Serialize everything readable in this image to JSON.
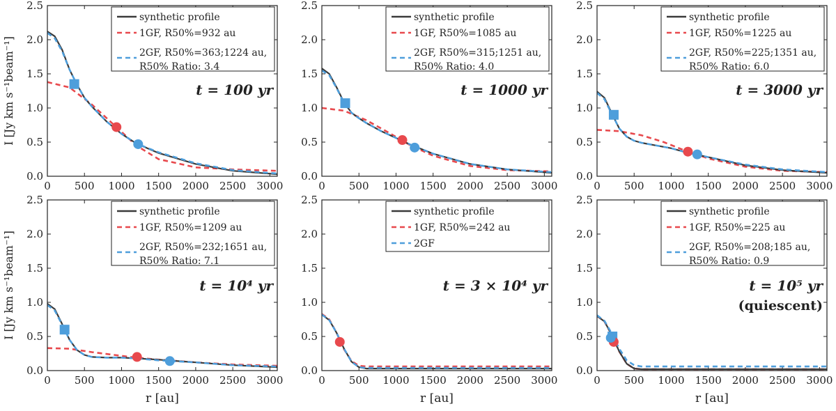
{
  "figure": {
    "ylabel": "I [Jy km s⁻¹beam⁻¹]",
    "xlabel": "r [au]"
  },
  "colors": {
    "synthetic": "#3a3a3a",
    "one_gf": "#e8494d",
    "two_gf": "#4e9edb"
  },
  "chart_data": [
    {
      "type": "line",
      "panel": "100 yr",
      "time_label": "t = 100 yr",
      "time_label_2": "",
      "xlim": [
        0,
        3100
      ],
      "ylim": [
        0,
        2.5
      ],
      "xticks": [
        "0",
        "500",
        "1000",
        "1500",
        "2000",
        "2500",
        "3000"
      ],
      "yticks": [
        "0.0",
        "0.5",
        "1.0",
        "1.5",
        "2.0",
        "2.5"
      ],
      "legend": {
        "synthetic": "synthetic profile",
        "one_gf": "1GF, R50%=932 au",
        "two_gf_line1": "2GF, R50%=363;1224 au,",
        "two_gf_line2": "R50% Ratio: 3.4"
      },
      "series": [
        {
          "name": "synthetic profile",
          "x": [
            0,
            100,
            200,
            300,
            400,
            500,
            600,
            800,
            1000,
            1200,
            1500,
            2000,
            2500,
            3100
          ],
          "values": [
            2.12,
            2.05,
            1.85,
            1.56,
            1.34,
            1.15,
            1.02,
            0.8,
            0.62,
            0.48,
            0.34,
            0.18,
            0.08,
            0.03
          ]
        },
        {
          "name": "1GF",
          "x": [
            0,
            300,
            600,
            900,
            1200,
            1500,
            2000,
            2500,
            3100
          ],
          "values": [
            1.38,
            1.3,
            1.05,
            0.75,
            0.45,
            0.25,
            0.13,
            0.1,
            0.08
          ]
        },
        {
          "name": "2GF",
          "x": [
            0,
            100,
            200,
            300,
            400,
            500,
            600,
            800,
            1000,
            1200,
            1500,
            2000,
            2500,
            3100
          ],
          "values": [
            2.1,
            2.02,
            1.83,
            1.56,
            1.34,
            1.15,
            1.02,
            0.8,
            0.62,
            0.48,
            0.35,
            0.19,
            0.09,
            0.04
          ]
        }
      ],
      "markers": [
        {
          "series": "1GF",
          "shape": "circle",
          "x": 932,
          "y": 0.72
        },
        {
          "series": "2GF",
          "shape": "square",
          "x": 363,
          "y": 1.35
        },
        {
          "series": "2GF",
          "shape": "circle",
          "x": 1224,
          "y": 0.47
        }
      ]
    },
    {
      "type": "line",
      "panel": "1000 yr",
      "time_label": "t = 1000 yr",
      "time_label_2": "",
      "xlim": [
        0,
        3100
      ],
      "ylim": [
        0,
        2.5
      ],
      "xticks": [
        "0",
        "500",
        "1000",
        "1500",
        "2000",
        "2500",
        "3000"
      ],
      "yticks": [
        "0.0",
        "0.5",
        "1.0",
        "1.5",
        "2.0",
        "2.5"
      ],
      "legend": {
        "synthetic": "synthetic profile",
        "one_gf": "1GF, R50%=1085 au",
        "two_gf_line1": "2GF, R50%=315;1251 au,",
        "two_gf_line2": "R50% Ratio: 4.0"
      },
      "series": [
        {
          "name": "synthetic profile",
          "x": [
            0,
            100,
            200,
            300,
            400,
            500,
            600,
            800,
            1000,
            1200,
            1500,
            2000,
            2500,
            3100
          ],
          "values": [
            1.58,
            1.5,
            1.3,
            1.08,
            0.93,
            0.85,
            0.78,
            0.66,
            0.56,
            0.46,
            0.33,
            0.18,
            0.1,
            0.05
          ]
        },
        {
          "name": "1GF",
          "x": [
            0,
            300,
            600,
            900,
            1200,
            1500,
            2000,
            2500,
            3100
          ],
          "values": [
            1.0,
            0.96,
            0.82,
            0.64,
            0.45,
            0.3,
            0.15,
            0.09,
            0.07
          ]
        },
        {
          "name": "2GF",
          "x": [
            0,
            100,
            200,
            300,
            400,
            500,
            600,
            800,
            1000,
            1200,
            1500,
            2000,
            2500,
            3100
          ],
          "values": [
            1.55,
            1.48,
            1.29,
            1.07,
            0.93,
            0.85,
            0.78,
            0.66,
            0.56,
            0.46,
            0.33,
            0.18,
            0.1,
            0.06
          ]
        }
      ],
      "markers": [
        {
          "series": "1GF",
          "shape": "circle",
          "x": 1085,
          "y": 0.53
        },
        {
          "series": "2GF",
          "shape": "square",
          "x": 315,
          "y": 1.07
        },
        {
          "series": "2GF",
          "shape": "circle",
          "x": 1251,
          "y": 0.42
        }
      ]
    },
    {
      "type": "line",
      "panel": "3000 yr",
      "time_label": "t = 3000 yr",
      "time_label_2": "",
      "xlim": [
        0,
        3100
      ],
      "ylim": [
        0,
        2.5
      ],
      "xticks": [
        "0",
        "500",
        "1000",
        "1500",
        "2000",
        "2500",
        "3000"
      ],
      "yticks": [
        "0.0",
        "0.5",
        "1.0",
        "1.5",
        "2.0",
        "2.5"
      ],
      "legend": {
        "synthetic": "synthetic profile",
        "one_gf": "1GF, R50%=1225 au",
        "two_gf_line1": "2GF, R50%=225;1351 au,",
        "two_gf_line2": "R50% Ratio: 6.0"
      },
      "series": [
        {
          "name": "synthetic profile",
          "x": [
            0,
            100,
            200,
            300,
            400,
            500,
            600,
            800,
            1000,
            1200,
            1500,
            2000,
            2500,
            3100
          ],
          "values": [
            1.24,
            1.15,
            0.92,
            0.7,
            0.58,
            0.52,
            0.49,
            0.45,
            0.41,
            0.35,
            0.28,
            0.16,
            0.09,
            0.05
          ]
        },
        {
          "name": "1GF",
          "x": [
            0,
            300,
            600,
            900,
            1200,
            1500,
            2000,
            2500,
            3100
          ],
          "values": [
            0.68,
            0.66,
            0.6,
            0.5,
            0.37,
            0.26,
            0.14,
            0.08,
            0.06
          ]
        },
        {
          "name": "2GF",
          "x": [
            0,
            100,
            200,
            300,
            400,
            500,
            600,
            800,
            1000,
            1200,
            1500,
            2000,
            2500,
            3100
          ],
          "values": [
            1.22,
            1.13,
            0.91,
            0.7,
            0.58,
            0.52,
            0.49,
            0.45,
            0.41,
            0.35,
            0.28,
            0.17,
            0.1,
            0.06
          ]
        }
      ],
      "markers": [
        {
          "series": "1GF",
          "shape": "circle",
          "x": 1225,
          "y": 0.36
        },
        {
          "series": "2GF",
          "shape": "square",
          "x": 225,
          "y": 0.9
        },
        {
          "series": "2GF",
          "shape": "circle",
          "x": 1351,
          "y": 0.32
        }
      ]
    },
    {
      "type": "line",
      "panel": "10^4 yr",
      "time_label": "t = 10⁴ yr",
      "time_label_2": "",
      "xlim": [
        0,
        3100
      ],
      "ylim": [
        0,
        2.5
      ],
      "xticks": [
        "0",
        "500",
        "1000",
        "1500",
        "2000",
        "2500",
        "3000"
      ],
      "yticks": [
        "0.0",
        "0.5",
        "1.0",
        "1.5",
        "2.0",
        "2.5"
      ],
      "legend": {
        "synthetic": "synthetic profile",
        "one_gf": "1GF, R50%=1209 au",
        "two_gf_line1": "2GF, R50%=232;1651 au,",
        "two_gf_line2": "R50% Ratio: 7.1"
      },
      "series": [
        {
          "name": "synthetic profile",
          "x": [
            0,
            100,
            200,
            300,
            400,
            500,
            600,
            800,
            1000,
            1200,
            1500,
            2000,
            2500,
            3100
          ],
          "values": [
            0.98,
            0.9,
            0.68,
            0.45,
            0.3,
            0.23,
            0.2,
            0.19,
            0.19,
            0.18,
            0.16,
            0.12,
            0.08,
            0.05
          ]
        },
        {
          "name": "1GF",
          "x": [
            0,
            300,
            600,
            900,
            1200,
            1500,
            2000,
            2500,
            3100
          ],
          "values": [
            0.33,
            0.32,
            0.27,
            0.23,
            0.19,
            0.16,
            0.12,
            0.09,
            0.07
          ]
        },
        {
          "name": "2GF",
          "x": [
            0,
            100,
            200,
            300,
            400,
            500,
            600,
            800,
            1000,
            1200,
            1500,
            2000,
            2500,
            3100
          ],
          "values": [
            0.96,
            0.88,
            0.67,
            0.45,
            0.3,
            0.23,
            0.2,
            0.19,
            0.19,
            0.18,
            0.15,
            0.12,
            0.08,
            0.06
          ]
        }
      ],
      "markers": [
        {
          "series": "1GF",
          "shape": "circle",
          "x": 1209,
          "y": 0.2
        },
        {
          "series": "2GF",
          "shape": "square",
          "x": 232,
          "y": 0.6
        },
        {
          "series": "2GF",
          "shape": "circle",
          "x": 1651,
          "y": 0.14
        }
      ]
    },
    {
      "type": "line",
      "panel": "3x10^4 yr",
      "time_label": "t = 3 × 10⁴ yr",
      "time_label_2": "",
      "xlim": [
        0,
        3100
      ],
      "ylim": [
        0,
        2.5
      ],
      "xticks": [
        "0",
        "500",
        "1000",
        "1500",
        "2000",
        "2500",
        "3000"
      ],
      "yticks": [
        "0.0",
        "0.5",
        "1.0",
        "1.5",
        "2.0",
        "2.5"
      ],
      "legend": {
        "synthetic": "synthetic profile",
        "one_gf": "1GF, R50%=242 au",
        "two_gf_line1": "2GF",
        "two_gf_line2": ""
      },
      "series": [
        {
          "name": "synthetic profile",
          "x": [
            0,
            100,
            200,
            300,
            400,
            500,
            600,
            800,
            1000,
            1500,
            2000,
            2500,
            3100
          ],
          "values": [
            0.82,
            0.74,
            0.55,
            0.32,
            0.13,
            0.05,
            0.03,
            0.03,
            0.03,
            0.03,
            0.03,
            0.03,
            0.03
          ]
        },
        {
          "name": "1GF",
          "x": [
            0,
            100,
            200,
            300,
            400,
            500,
            600,
            800,
            1000,
            1500,
            2000,
            2500,
            3100
          ],
          "values": [
            0.83,
            0.75,
            0.55,
            0.31,
            0.14,
            0.07,
            0.06,
            0.06,
            0.06,
            0.06,
            0.06,
            0.06,
            0.06
          ]
        },
        {
          "name": "2GF",
          "x": [
            0,
            100,
            200,
            300,
            400,
            500,
            600,
            800,
            1000,
            1500,
            2000,
            2500,
            3100
          ],
          "values": [
            0.82,
            0.74,
            0.55,
            0.32,
            0.13,
            0.05,
            0.04,
            0.04,
            0.04,
            0.04,
            0.04,
            0.04,
            0.04
          ]
        }
      ],
      "markers": [
        {
          "series": "1GF",
          "shape": "circle",
          "x": 242,
          "y": 0.42
        }
      ]
    },
    {
      "type": "line",
      "panel": "10^5 yr",
      "time_label": "t = 10⁵ yr",
      "time_label_2": "(quiescent)",
      "xlim": [
        0,
        3100
      ],
      "ylim": [
        0,
        2.5
      ],
      "xticks": [
        "0",
        "500",
        "1000",
        "1500",
        "2000",
        "2500",
        "3000"
      ],
      "yticks": [
        "0.0",
        "0.5",
        "1.0",
        "1.5",
        "2.0",
        "2.5"
      ],
      "legend": {
        "synthetic": "synthetic profile",
        "one_gf": "1GF, R50%=225 au",
        "two_gf_line1": "2GF, R50%=208;185 au,",
        "two_gf_line2": "R50% Ratio: 0.9"
      },
      "series": [
        {
          "name": "synthetic profile",
          "x": [
            0,
            100,
            200,
            300,
            400,
            500,
            600,
            800,
            1000,
            1500,
            2000,
            2500,
            3100
          ],
          "values": [
            0.8,
            0.72,
            0.52,
            0.28,
            0.1,
            0.03,
            0.02,
            0.02,
            0.02,
            0.02,
            0.02,
            0.02,
            0.02
          ]
        },
        {
          "name": "1GF",
          "x": [
            0,
            100,
            200,
            300,
            400,
            500,
            600,
            800,
            1000,
            1500,
            2000,
            2500,
            3100
          ],
          "values": [
            0.8,
            0.72,
            0.52,
            0.28,
            0.1,
            0.03,
            0.02,
            0.02,
            0.02,
            0.02,
            0.02,
            0.02,
            0.02
          ]
        },
        {
          "name": "2GF",
          "x": [
            0,
            100,
            200,
            300,
            400,
            500,
            600,
            800,
            1000,
            1500,
            2000,
            2500,
            3100
          ],
          "values": [
            0.81,
            0.73,
            0.54,
            0.32,
            0.15,
            0.08,
            0.06,
            0.06,
            0.06,
            0.06,
            0.06,
            0.06,
            0.06
          ]
        }
      ],
      "markers": [
        {
          "series": "2GF",
          "shape": "square",
          "x": 208,
          "y": 0.5
        },
        {
          "series": "1GF",
          "shape": "circle",
          "x": 225,
          "y": 0.42
        },
        {
          "series": "2GF",
          "shape": "circle",
          "x": 185,
          "y": 0.48
        }
      ]
    }
  ]
}
